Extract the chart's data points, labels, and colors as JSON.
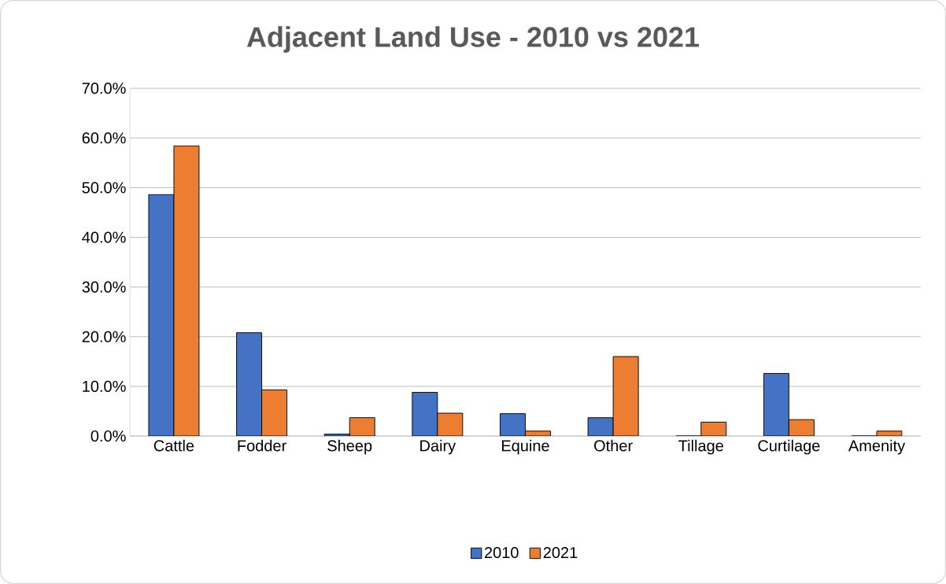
{
  "chart_data": {
    "type": "bar",
    "title": "Adjacent Land Use - 2010 vs 2021",
    "categories": [
      "Cattle",
      "Fodder",
      "Sheep",
      "Dairy",
      "Equine",
      "Other",
      "Tillage",
      "Curtilage",
      "Amenity"
    ],
    "series": [
      {
        "name": "2010",
        "color": "#4472c4",
        "values": [
          48.6,
          20.8,
          0.4,
          8.8,
          4.5,
          3.7,
          0,
          12.6,
          0
        ]
      },
      {
        "name": "2021",
        "color": "#ed7d31",
        "values": [
          58.4,
          9.3,
          3.7,
          4.6,
          1.0,
          16.0,
          2.8,
          3.3,
          1.0
        ]
      }
    ],
    "ylim": [
      0,
      70
    ],
    "yticks": [
      {
        "value": 0,
        "label": "0.0%"
      },
      {
        "value": 10,
        "label": "10.0%"
      },
      {
        "value": 20,
        "label": "20.0%"
      },
      {
        "value": 30,
        "label": "30.0%"
      },
      {
        "value": 40,
        "label": "40.0%"
      },
      {
        "value": 50,
        "label": "50.0%"
      },
      {
        "value": 60,
        "label": "60.0%"
      },
      {
        "value": 70,
        "label": "70.0%"
      }
    ],
    "grid": "y",
    "legend": "bottom"
  }
}
